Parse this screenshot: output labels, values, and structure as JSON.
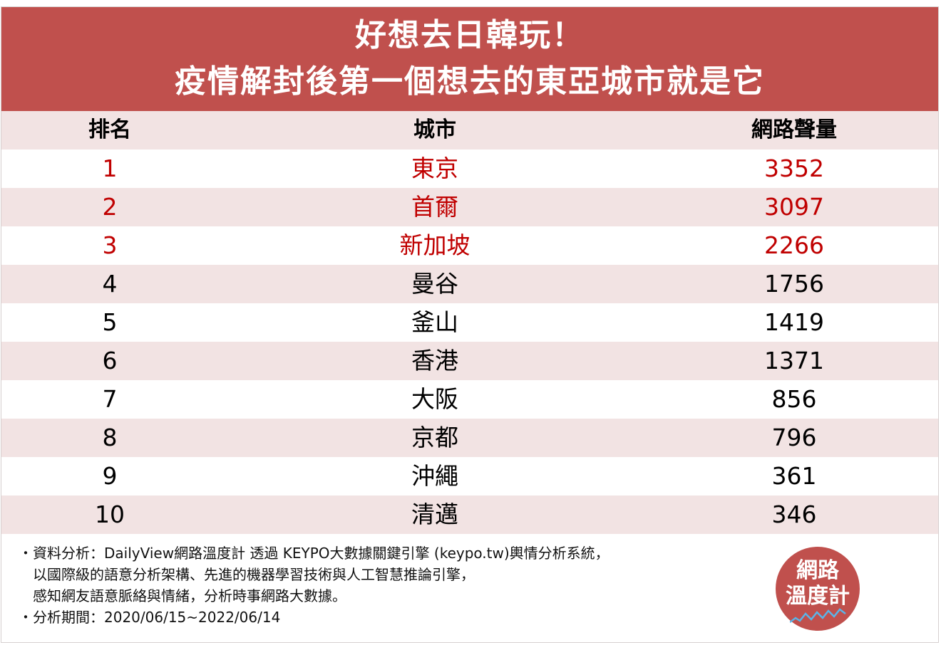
{
  "header": {
    "line1": "好想去日韓玩！",
    "line2": "疫情解封後第一個想去的東亞城市就是它"
  },
  "chart_data": {
    "type": "table",
    "columns": [
      "排名",
      "城市",
      "網路聲量"
    ],
    "rows": [
      {
        "rank": "1",
        "city": "東京",
        "volume": "3352"
      },
      {
        "rank": "2",
        "city": "首爾",
        "volume": "3097"
      },
      {
        "rank": "3",
        "city": "新加坡",
        "volume": "2266"
      },
      {
        "rank": "4",
        "city": "曼谷",
        "volume": "1756"
      },
      {
        "rank": "5",
        "city": "釜山",
        "volume": "1419"
      },
      {
        "rank": "6",
        "city": "香港",
        "volume": "1371"
      },
      {
        "rank": "7",
        "city": "大阪",
        "volume": "856"
      },
      {
        "rank": "8",
        "city": "京都",
        "volume": "796"
      },
      {
        "rank": "9",
        "city": "沖繩",
        "volume": "361"
      },
      {
        "rank": "10",
        "city": "清邁",
        "volume": "346"
      }
    ]
  },
  "colors": {
    "accent": "#c0504d",
    "highlight_text": "#c00000",
    "row_alt": "#f2e3e3"
  },
  "notes": [
    "・資料分析：DailyView網路溫度計 透過 KEYPO大數據關鍵引擎 (keypo.tw)輿情分析系統，",
    "以國際級的語意分析架構、先進的機器學習技術與人工智慧推論引擎，",
    "感知網友語意脈絡與情緒，分析時事網路大數據。",
    "・分析期間：2020/06/15~2022/06/14"
  ],
  "logo": {
    "line1": "網路",
    "line2": "溫度計"
  }
}
